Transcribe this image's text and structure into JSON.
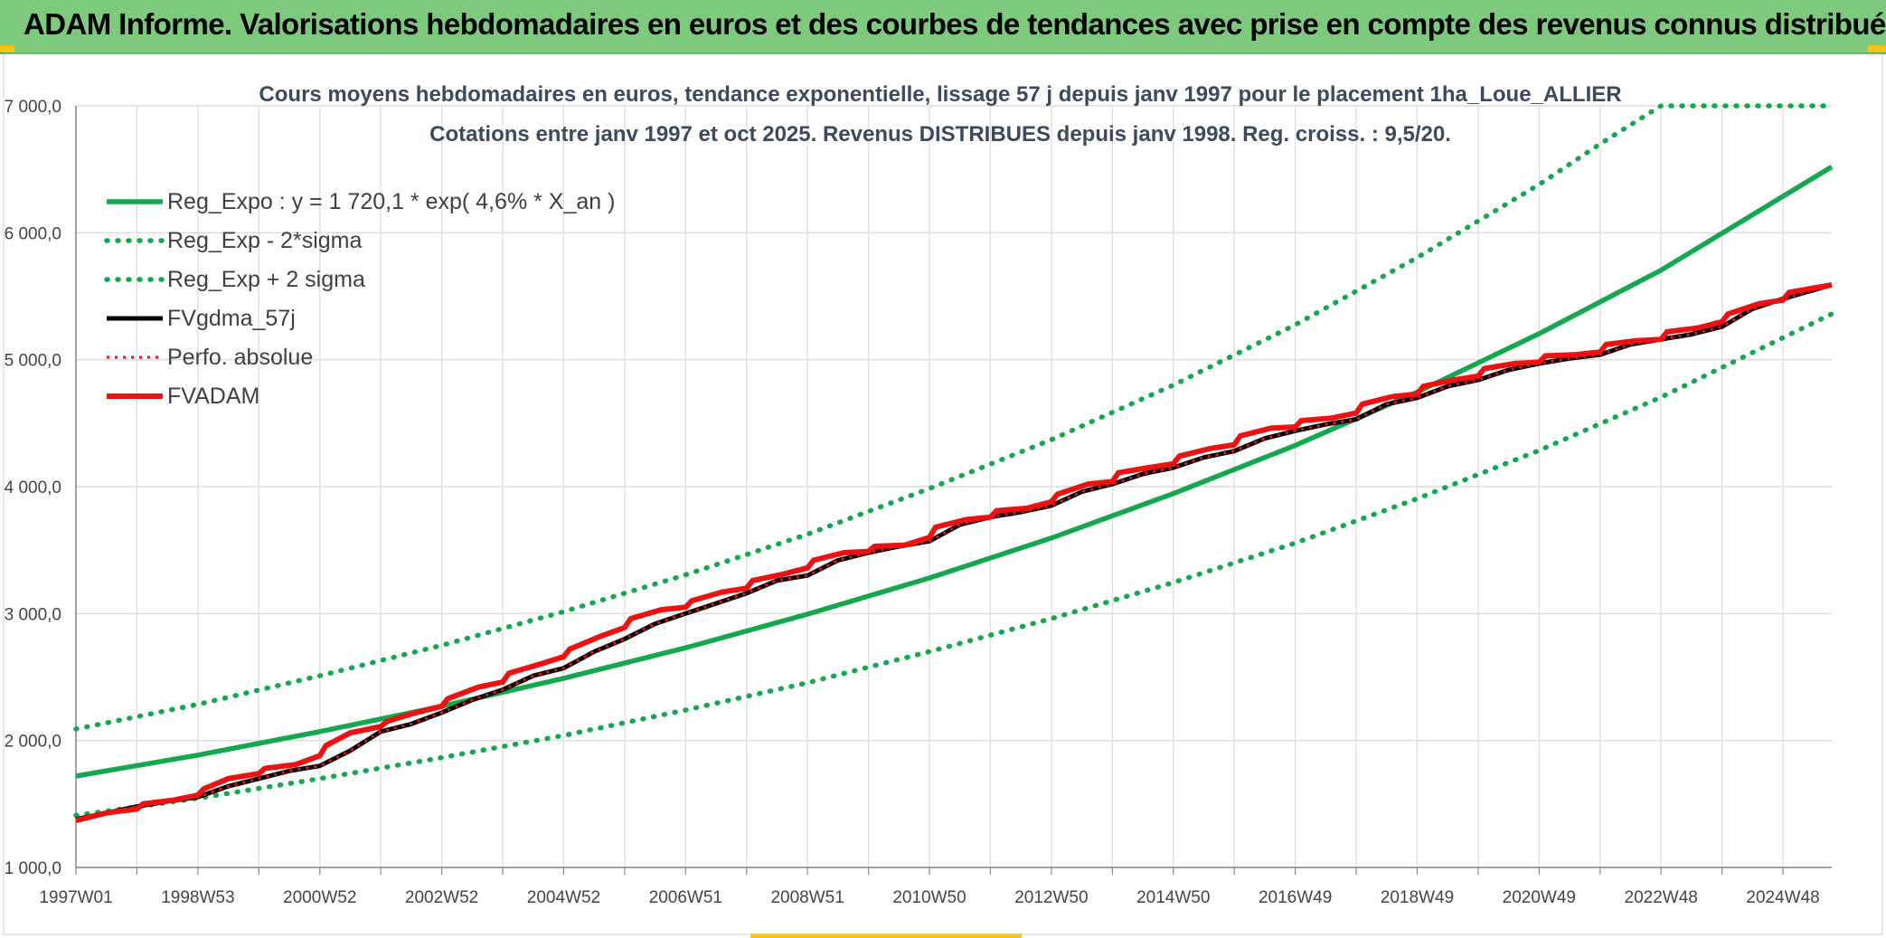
{
  "banner": {
    "title": "ADAM Informe. Valorisations hebdomadaires en euros et des courbes de tendances avec prise en compte des revenus connus distribués"
  },
  "colors": {
    "banner_bg": "#7dc97d",
    "reg_green": "#13a84e",
    "series_black": "#000000",
    "series_red": "#ee1111",
    "grid": "#dcdcdc",
    "corner_yellow": "#f3c316"
  },
  "chart_data": {
    "type": "line",
    "title_line1": "Cours moyens hebdomadaires en euros, tendance exponentielle, lissage 57 j depuis janv 1997 pour le placement 1ha_Loue_ALLIER",
    "title_line2": "Cotations entre janv 1997 et oct 2025. Revenus DISTRIBUES depuis janv 1998. Reg. croiss. : 9,5/20.",
    "xlabel": "",
    "ylabel": "",
    "x_range_years": [
      1997.0,
      2025.8
    ],
    "ylim": [
      1000,
      7000
    ],
    "y_ticks": [
      1000,
      2000,
      3000,
      4000,
      5000,
      6000,
      7000
    ],
    "y_tick_labels": [
      "1 000,0",
      "2 000,0",
      "3 000,0",
      "4 000,0",
      "5 000,0",
      "6 000,0",
      "7 000,0"
    ],
    "x_ticks": [
      {
        "label": "1997W01",
        "year": 1997.0
      },
      {
        "label": "1998W53",
        "year": 1999.0
      },
      {
        "label": "2000W52",
        "year": 2001.0
      },
      {
        "label": "2002W52",
        "year": 2003.0
      },
      {
        "label": "2004W52",
        "year": 2005.0
      },
      {
        "label": "2006W51",
        "year": 2007.0
      },
      {
        "label": "2008W51",
        "year": 2009.0
      },
      {
        "label": "2010W50",
        "year": 2011.0
      },
      {
        "label": "2012W50",
        "year": 2013.0
      },
      {
        "label": "2014W50",
        "year": 2015.0
      },
      {
        "label": "2016W49",
        "year": 2017.0
      },
      {
        "label": "2018W49",
        "year": 2019.0
      },
      {
        "label": "2020W49",
        "year": 2021.0
      },
      {
        "label": "2022W48",
        "year": 2023.0
      },
      {
        "label": "2024W48",
        "year": 2025.0
      }
    ],
    "grid": true,
    "legend_position": "top-left",
    "series": [
      {
        "name": "Reg_Expo : y = 1 720,1 * exp( 4,6% *  X_an )",
        "style": "solid",
        "color": "#13a84e",
        "years": [
          1997,
          1999,
          2001,
          2003,
          2005,
          2007,
          2009,
          2011,
          2013,
          2015,
          2017,
          2019,
          2021,
          2023,
          2025.8
        ],
        "values": [
          1720,
          1885,
          2070,
          2270,
          2490,
          2730,
          2995,
          3280,
          3595,
          3945,
          4325,
          4745,
          5205,
          5705,
          6520
        ]
      },
      {
        "name": "Reg_Exp - 2*sigma",
        "style": "dotted",
        "color": "#13a84e",
        "years": [
          1997,
          1999,
          2001,
          2003,
          2005,
          2007,
          2009,
          2011,
          2013,
          2015,
          2017,
          2019,
          2021,
          2023,
          2025.8
        ],
        "values": [
          1410,
          1545,
          1700,
          1865,
          2040,
          2240,
          2455,
          2700,
          2960,
          3245,
          3555,
          3905,
          4285,
          4705,
          5360
        ]
      },
      {
        "name": "Reg_Exp + 2 sigma",
        "style": "dotted",
        "color": "#13a84e",
        "years": [
          1997,
          1999,
          2001,
          2003,
          2005,
          2007,
          2009,
          2011,
          2013,
          2015,
          2017,
          2019,
          2021,
          2022,
          2023,
          2025.8
        ],
        "values": [
          2090,
          2285,
          2510,
          2750,
          3015,
          3305,
          3625,
          3985,
          4370,
          4800,
          5275,
          5805,
          6380,
          6700,
          7000,
          7000
        ]
      },
      {
        "name": "FVgdma_57j",
        "style": "solid",
        "color": "#000000",
        "years": [
          1997.0,
          1997.6,
          1998.0,
          1998.5,
          1999.0,
          1999.5,
          2000.0,
          2000.5,
          2001.0,
          2001.5,
          2002.0,
          2002.5,
          2003.0,
          2003.5,
          2004.0,
          2004.5,
          2005.0,
          2005.5,
          2006.0,
          2006.5,
          2007.0,
          2007.5,
          2008.0,
          2008.5,
          2009.0,
          2009.5,
          2010.0,
          2010.5,
          2011.0,
          2011.5,
          2012.0,
          2012.5,
          2013.0,
          2013.5,
          2014.0,
          2014.5,
          2015.0,
          2015.5,
          2016.0,
          2016.5,
          2017.0,
          2017.5,
          2018.0,
          2018.5,
          2019.0,
          2019.5,
          2020.0,
          2020.5,
          2021.0,
          2021.5,
          2022.0,
          2022.5,
          2023.0,
          2023.5,
          2024.0,
          2024.5,
          2025.0,
          2025.8
        ],
        "values": [
          1380,
          1440,
          1480,
          1520,
          1555,
          1640,
          1700,
          1760,
          1800,
          1920,
          2070,
          2130,
          2220,
          2320,
          2400,
          2510,
          2570,
          2700,
          2800,
          2920,
          3000,
          3080,
          3160,
          3260,
          3300,
          3420,
          3480,
          3530,
          3570,
          3700,
          3760,
          3800,
          3850,
          3960,
          4020,
          4100,
          4150,
          4230,
          4280,
          4380,
          4440,
          4490,
          4530,
          4650,
          4700,
          4790,
          4840,
          4920,
          4970,
          5010,
          5040,
          5120,
          5160,
          5200,
          5260,
          5400,
          5480,
          5590
        ]
      },
      {
        "name": "Perfo. absolue",
        "style": "dotted",
        "color": "#ee1111",
        "years": [
          1997.0,
          1997.6,
          1998.0,
          1998.5,
          1999.0,
          1999.5,
          2000.0,
          2000.5,
          2001.0,
          2001.5,
          2002.0,
          2002.5,
          2003.0,
          2003.5,
          2004.0,
          2004.5,
          2005.0,
          2005.5,
          2006.0,
          2006.5,
          2007.0,
          2007.5,
          2008.0,
          2008.5,
          2009.0,
          2009.5,
          2010.0,
          2010.5,
          2011.0,
          2011.5,
          2012.0,
          2012.5,
          2013.0,
          2013.5,
          2014.0,
          2014.5,
          2015.0,
          2015.5,
          2016.0,
          2016.5,
          2017.0,
          2017.5,
          2018.0,
          2018.5,
          2019.0,
          2019.5,
          2020.0,
          2020.5,
          2021.0,
          2021.5,
          2022.0,
          2022.5,
          2023.0,
          2023.5,
          2024.0,
          2024.5,
          2025.0,
          2025.8
        ],
        "values": [
          1380,
          1440,
          1480,
          1520,
          1555,
          1640,
          1700,
          1760,
          1800,
          1920,
          2070,
          2130,
          2220,
          2320,
          2400,
          2510,
          2570,
          2700,
          2800,
          2920,
          3000,
          3080,
          3160,
          3260,
          3300,
          3420,
          3480,
          3530,
          3570,
          3700,
          3760,
          3800,
          3850,
          3960,
          4020,
          4100,
          4150,
          4230,
          4280,
          4380,
          4440,
          4490,
          4530,
          4650,
          4700,
          4790,
          4840,
          4920,
          4970,
          5010,
          5040,
          5120,
          5160,
          5200,
          5260,
          5400,
          5480,
          5590
        ]
      },
      {
        "name": "FVADAM",
        "style": "solid",
        "color": "#ee1111",
        "years": [
          1997.0,
          1997.5,
          1998.0,
          1998.1,
          1998.6,
          1999.0,
          1999.1,
          1999.5,
          2000.0,
          2000.1,
          2000.6,
          2001.0,
          2001.1,
          2001.5,
          2002.0,
          2002.1,
          2002.5,
          2003.0,
          2003.1,
          2003.6,
          2004.0,
          2004.1,
          2004.6,
          2005.0,
          2005.1,
          2005.6,
          2006.0,
          2006.1,
          2006.6,
          2007.0,
          2007.1,
          2007.6,
          2008.0,
          2008.1,
          2008.6,
          2009.0,
          2009.1,
          2009.6,
          2010.0,
          2010.1,
          2010.6,
          2011.0,
          2011.1,
          2011.6,
          2012.0,
          2012.1,
          2012.6,
          2013.0,
          2013.1,
          2013.6,
          2014.0,
          2014.1,
          2014.6,
          2015.0,
          2015.1,
          2015.6,
          2016.0,
          2016.1,
          2016.6,
          2017.0,
          2017.1,
          2017.6,
          2018.0,
          2018.1,
          2018.6,
          2019.0,
          2019.1,
          2019.6,
          2020.0,
          2020.1,
          2020.6,
          2021.0,
          2021.1,
          2021.6,
          2022.0,
          2022.1,
          2022.6,
          2023.0,
          2023.1,
          2023.6,
          2024.0,
          2024.1,
          2024.6,
          2025.0,
          2025.1,
          2025.8
        ],
        "values": [
          1370,
          1430,
          1460,
          1500,
          1530,
          1570,
          1620,
          1700,
          1740,
          1780,
          1810,
          1880,
          1960,
          2060,
          2110,
          2150,
          2210,
          2270,
          2330,
          2420,
          2460,
          2530,
          2600,
          2660,
          2720,
          2820,
          2890,
          2960,
          3030,
          3050,
          3100,
          3170,
          3200,
          3260,
          3310,
          3360,
          3420,
          3480,
          3490,
          3530,
          3540,
          3600,
          3680,
          3740,
          3760,
          3810,
          3830,
          3880,
          3940,
          4020,
          4040,
          4110,
          4150,
          4180,
          4240,
          4300,
          4330,
          4400,
          4460,
          4470,
          4520,
          4540,
          4580,
          4650,
          4710,
          4730,
          4790,
          4840,
          4870,
          4930,
          4970,
          4980,
          5030,
          5040,
          5060,
          5120,
          5150,
          5160,
          5220,
          5250,
          5300,
          5360,
          5440,
          5470,
          5530,
          5590
        ]
      }
    ]
  }
}
